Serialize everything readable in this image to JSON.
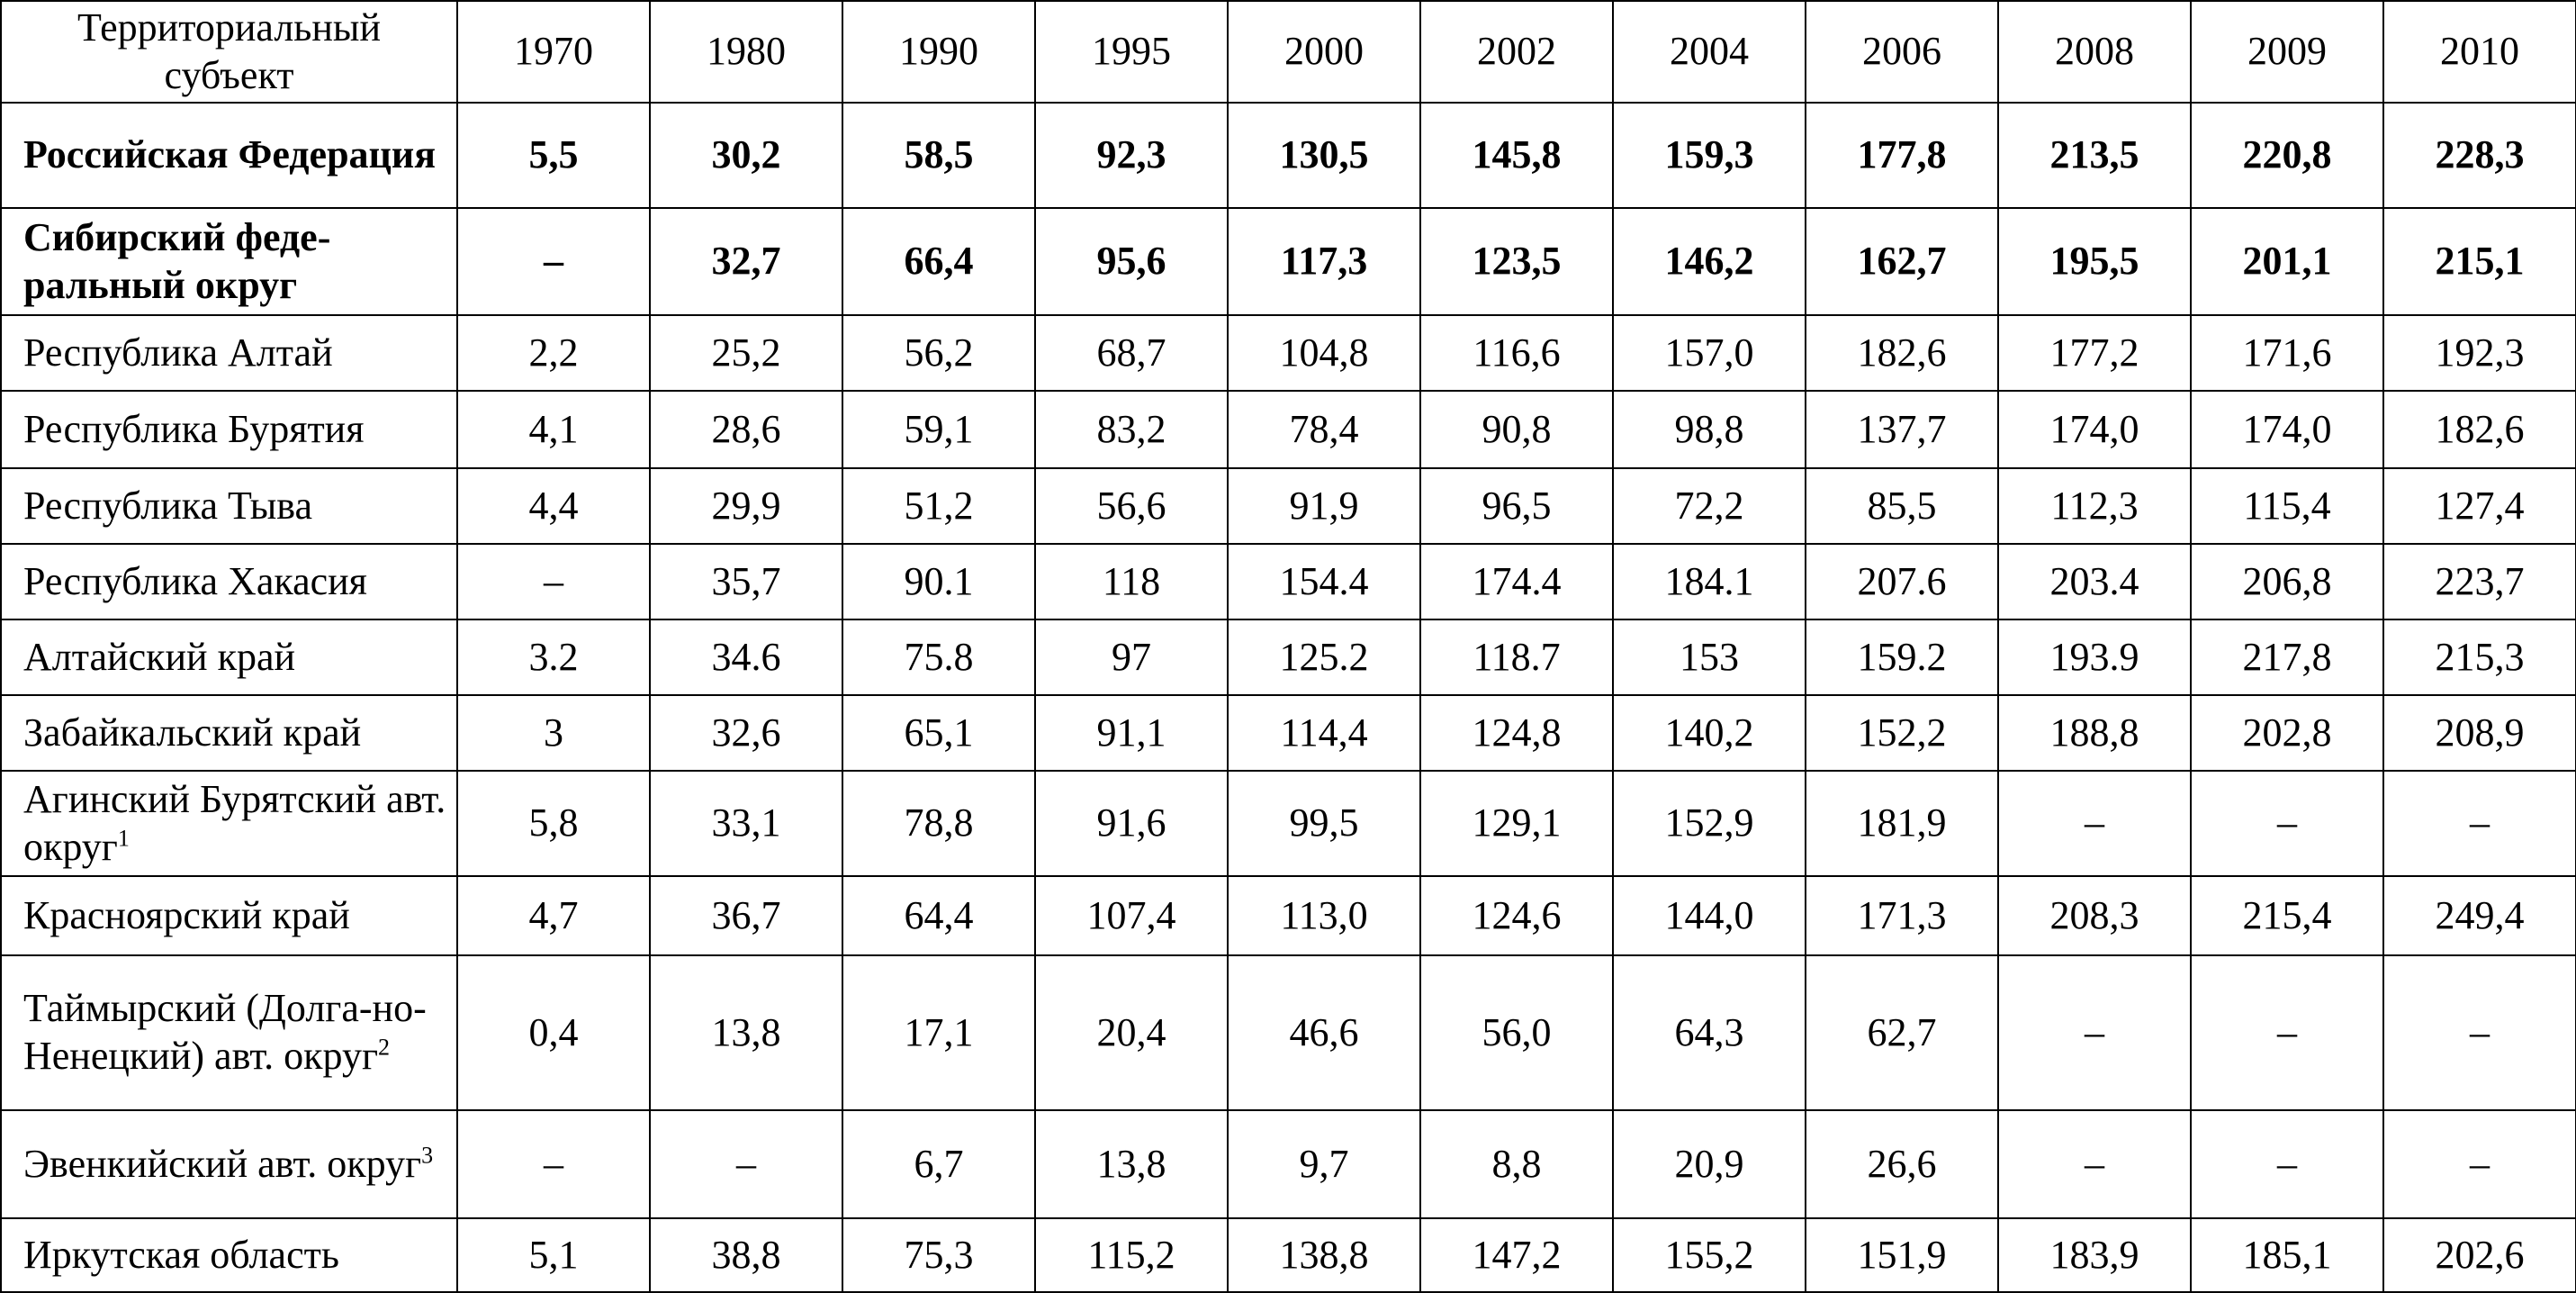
{
  "table": {
    "header": [
      "Территориальный субъект",
      "1970",
      "1980",
      "1990",
      "1995",
      "2000",
      "2002",
      "2004",
      "2006",
      "2008",
      "2009",
      "2010"
    ],
    "rows": [
      {
        "name": "Российская Федерация",
        "cells": [
          "5,5",
          "30,2",
          "58,5",
          "92,3",
          "130,5",
          "145,8",
          "159,3",
          "177,8",
          "213,5",
          "220,8",
          "228,3"
        ]
      },
      {
        "name": "Сибирский феде-ральный округ",
        "cells": [
          "–",
          "32,7",
          "66,4",
          "95,6",
          "117,3",
          "123,5",
          "146,2",
          "162,7",
          "195,5",
          "201,1",
          "215,1"
        ]
      },
      {
        "name": "Республика Алтай",
        "cells": [
          "2,2",
          "25,2",
          "56,2",
          "68,7",
          "104,8",
          "116,6",
          "157,0",
          "182,6",
          "177,2",
          "171,6",
          "192,3"
        ]
      },
      {
        "name": "Республика Бурятия",
        "cells": [
          "4,1",
          "28,6",
          "59,1",
          "83,2",
          "78,4",
          "90,8",
          "98,8",
          "137,7",
          "174,0",
          "174,0",
          "182,6"
        ]
      },
      {
        "name": "Республика Тыва",
        "cells": [
          "4,4",
          "29,9",
          "51,2",
          "56,6",
          "91,9",
          "96,5",
          "72,2",
          "85,5",
          "112,3",
          "115,4",
          "127,4"
        ]
      },
      {
        "name": "Республика Хакасия",
        "cells": [
          "–",
          "35,7",
          "90.1",
          "118",
          "154.4",
          "174.4",
          "184.1",
          "207.6",
          "203.4",
          "206,8",
          "223,7"
        ]
      },
      {
        "name": "Алтайский край",
        "cells": [
          "3.2",
          "34.6",
          "75.8",
          "97",
          "125.2",
          "118.7",
          "153",
          "159.2",
          "193.9",
          "217,8",
          "215,3"
        ]
      },
      {
        "name": "Забайкальский край",
        "cells": [
          "3",
          "32,6",
          "65,1",
          "91,1",
          "114,4",
          "124,8",
          "140,2",
          "152,2",
          "188,8",
          "202,8",
          "208,9"
        ]
      },
      {
        "name": "Агинский Бурятский авт. округ",
        "note": "1",
        "cells": [
          "5,8",
          "33,1",
          "78,8",
          "91,6",
          "99,5",
          "129,1",
          "152,9",
          "181,9",
          "–",
          "–",
          "–"
        ]
      },
      {
        "name": "Красноярский край",
        "cells": [
          "4,7",
          "36,7",
          "64,4",
          "107,4",
          "113,0",
          "124,6",
          "144,0",
          "171,3",
          "208,3",
          "215,4",
          "249,4"
        ]
      },
      {
        "name": "Таймырский (Долга-но-Ненецкий) авт. округ",
        "note": "2",
        "cells": [
          "0,4",
          "13,8",
          "17,1",
          "20,4",
          "46,6",
          "56,0",
          "64,3",
          "62,7",
          "–",
          "–",
          "–"
        ]
      },
      {
        "name": "Эвенкийский авт. округ",
        "note": "3",
        "cells": [
          "–",
          "–",
          "6,7",
          "13,8",
          "9,7",
          "8,8",
          "20,9",
          "26,6",
          "–",
          "–",
          "–"
        ]
      },
      {
        "name": "Иркутская область",
        "cells": [
          "5,1",
          "38,8",
          "75,3",
          "115,2",
          "138,8",
          "147,2",
          "155,2",
          "151,9",
          "183,9",
          "185,1",
          "202,6"
        ]
      }
    ]
  }
}
